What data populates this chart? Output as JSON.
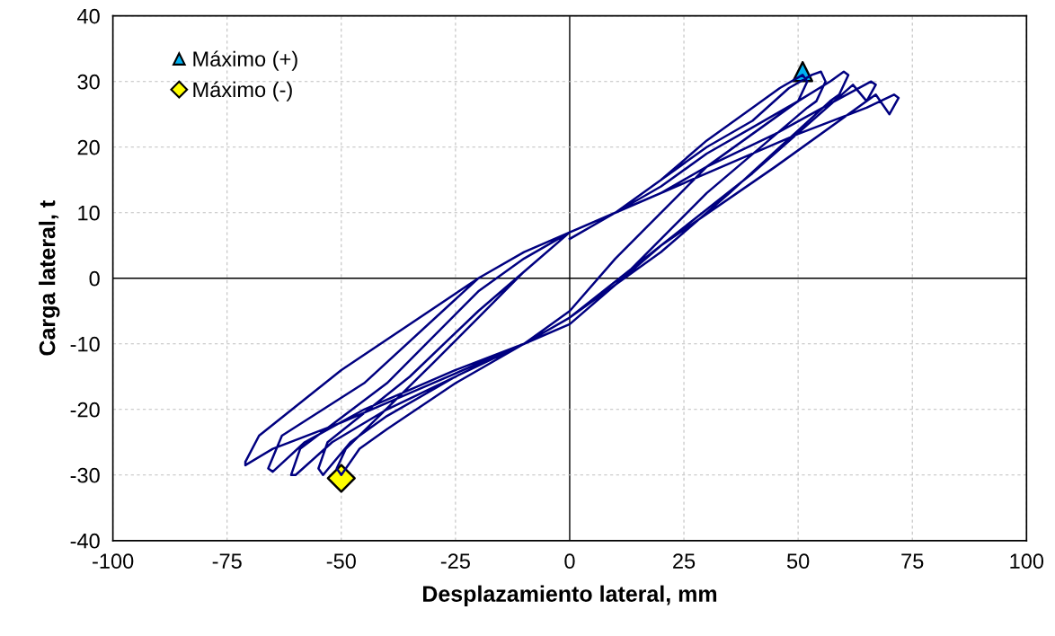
{
  "chart_data": {
    "type": "line",
    "xlabel": "Desplazamiento lateral, mm",
    "ylabel": "Carga lateral, t",
    "xlim": [
      -100,
      100
    ],
    "ylim": [
      -40,
      40
    ],
    "xticks": [
      -100,
      -75,
      -50,
      -25,
      0,
      25,
      50,
      75,
      100
    ],
    "yticks": [
      -40,
      -30,
      -20,
      -10,
      0,
      10,
      20,
      30,
      40
    ],
    "grid": true,
    "legend": "top left",
    "series": [
      {
        "color": "#000080",
        "marker": "none",
        "x": [
          0,
          10,
          20,
          30,
          40,
          46,
          51,
          52,
          50,
          30,
          10,
          0,
          -10,
          -25,
          -40,
          -46,
          -50,
          -51,
          -49,
          -30,
          -20,
          -10,
          0,
          10,
          20,
          30,
          40,
          48,
          53,
          55,
          56,
          54,
          52,
          30,
          10,
          0,
          -10,
          -25,
          -40,
          -48,
          -54,
          -55,
          -53,
          -35,
          -20,
          -10,
          0,
          10,
          20,
          30,
          40,
          50,
          57,
          60,
          61,
          59,
          57,
          35,
          20,
          0,
          -10,
          -25,
          -40,
          -52,
          -60,
          -61,
          -59,
          -40,
          -20,
          -10,
          0,
          10,
          20,
          30,
          45,
          58,
          66,
          67,
          65,
          62,
          40,
          20,
          0,
          -10,
          -25,
          -45,
          -58,
          -65,
          -66,
          -63,
          -45,
          -20,
          -10,
          0,
          10,
          30,
          50,
          65,
          71,
          72,
          70,
          67,
          45,
          20,
          0,
          -10,
          -30,
          -50,
          -65,
          -71,
          -71,
          -68,
          -50,
          -20,
          -10,
          0
        ],
        "values": [
          6,
          10,
          15,
          21,
          26,
          29,
          31,
          30,
          27,
          17,
          3,
          -5,
          -10,
          -16,
          -23,
          -26,
          -30,
          -29,
          -26,
          -13,
          -6,
          1,
          7,
          10,
          15,
          20,
          24,
          29,
          31,
          31.5,
          30,
          27,
          26,
          13,
          -1,
          -6,
          -10,
          -15,
          -21,
          -25,
          -30,
          -29,
          -25,
          -15,
          -5,
          1,
          7,
          10,
          14,
          19,
          23,
          27,
          30,
          31.5,
          31,
          28,
          27,
          13,
          4,
          -6,
          -10,
          -15,
          -20,
          -25,
          -30,
          -30,
          -26,
          -16,
          -2,
          3,
          7,
          10,
          13,
          17,
          22,
          27,
          30,
          29.5,
          27,
          29.5,
          16,
          5,
          -6,
          -10,
          -14,
          -20,
          -25,
          -29.5,
          -29,
          -24,
          -16,
          0,
          4,
          7,
          10,
          16,
          22,
          26,
          28,
          27.5,
          25,
          28,
          17,
          5,
          -7,
          -10,
          -16,
          -22,
          -26,
          -28.5,
          -28,
          -24,
          -14,
          0,
          4,
          7
        ]
      },
      {
        "type": "scatter",
        "name": "Máximo (+)",
        "color": "#00b0f0",
        "marker": "triangle",
        "x": [
          51
        ],
        "values": [
          31.5
        ]
      },
      {
        "type": "scatter",
        "name": "Máximo (-)",
        "color": "#ffff00",
        "marker": "diamond",
        "x": [
          -50
        ],
        "values": [
          -30.5
        ]
      }
    ]
  }
}
